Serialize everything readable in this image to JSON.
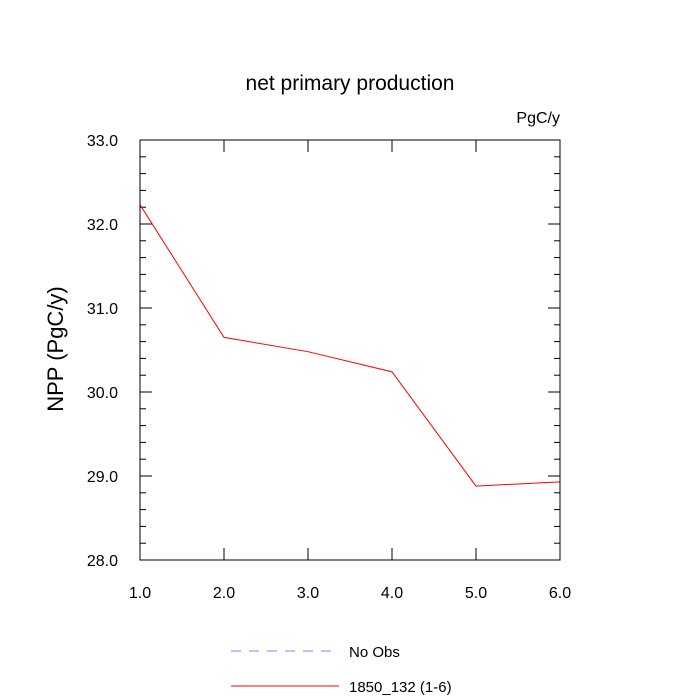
{
  "chart_data": {
    "type": "line",
    "title": "net primary production",
    "units_label": "PgC/y",
    "xlabel": "",
    "ylabel": "NPP  (PgC/y)",
    "xlim": [
      1.0,
      6.0
    ],
    "ylim": [
      28.0,
      33.0
    ],
    "x_ticks": [
      "1.0",
      "2.0",
      "3.0",
      "4.0",
      "5.0",
      "6.0"
    ],
    "y_ticks": [
      "28.0",
      "29.0",
      "30.0",
      "31.0",
      "32.0",
      "33.0"
    ],
    "series": [
      {
        "name": "1850_132 (1-6)",
        "color": "#ff0000",
        "style": "solid",
        "x": [
          1,
          2,
          3,
          4,
          5,
          6
        ],
        "values": [
          32.23,
          30.65,
          30.48,
          30.24,
          28.88,
          28.93
        ]
      },
      {
        "name": "No Obs",
        "color": "#8080ff",
        "style": "dashed",
        "x": [],
        "values": []
      }
    ],
    "legend": {
      "placement": "bottom",
      "entries": [
        "No Obs",
        "1850_132 (1-6)"
      ]
    },
    "grid": false
  }
}
